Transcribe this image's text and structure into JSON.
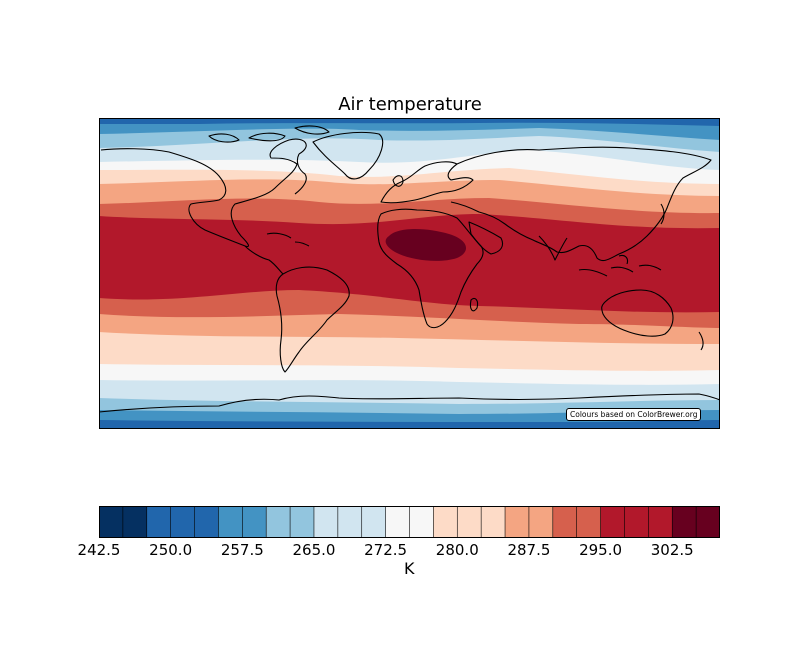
{
  "title": "Air temperature",
  "credit": "Colours based on ColorBrewer.org",
  "colorbar": {
    "label": "K",
    "min": 242.5,
    "step": 2.5,
    "ticks": [
      "242.5",
      "250.0",
      "257.5",
      "265.0",
      "272.5",
      "280.0",
      "287.5",
      "295.0",
      "302.5"
    ],
    "colors": [
      "#053061",
      "#053061",
      "#2166ac",
      "#2166ac",
      "#2166ac",
      "#4393c3",
      "#4393c3",
      "#92c5de",
      "#92c5de",
      "#d1e5f0",
      "#d1e5f0",
      "#d1e5f0",
      "#f7f7f7",
      "#f7f7f7",
      "#fddbc7",
      "#fddbc7",
      "#fddbc7",
      "#f4a582",
      "#f4a582",
      "#d6604d",
      "#d6604d",
      "#b2182b",
      "#b2182b",
      "#b2182b",
      "#67001f",
      "#67001f"
    ]
  },
  "map": {
    "projection": "Plate Carrée, global",
    "field": "air temperature (K)",
    "bands_colors": [
      "#2166ac",
      "#4393c3",
      "#92c5de",
      "#d1e5f0",
      "#f7f7f7",
      "#fddbc7",
      "#f4a582",
      "#d6604d",
      "#b2182b",
      "#67001f"
    ],
    "coastline_color": "#000000"
  }
}
